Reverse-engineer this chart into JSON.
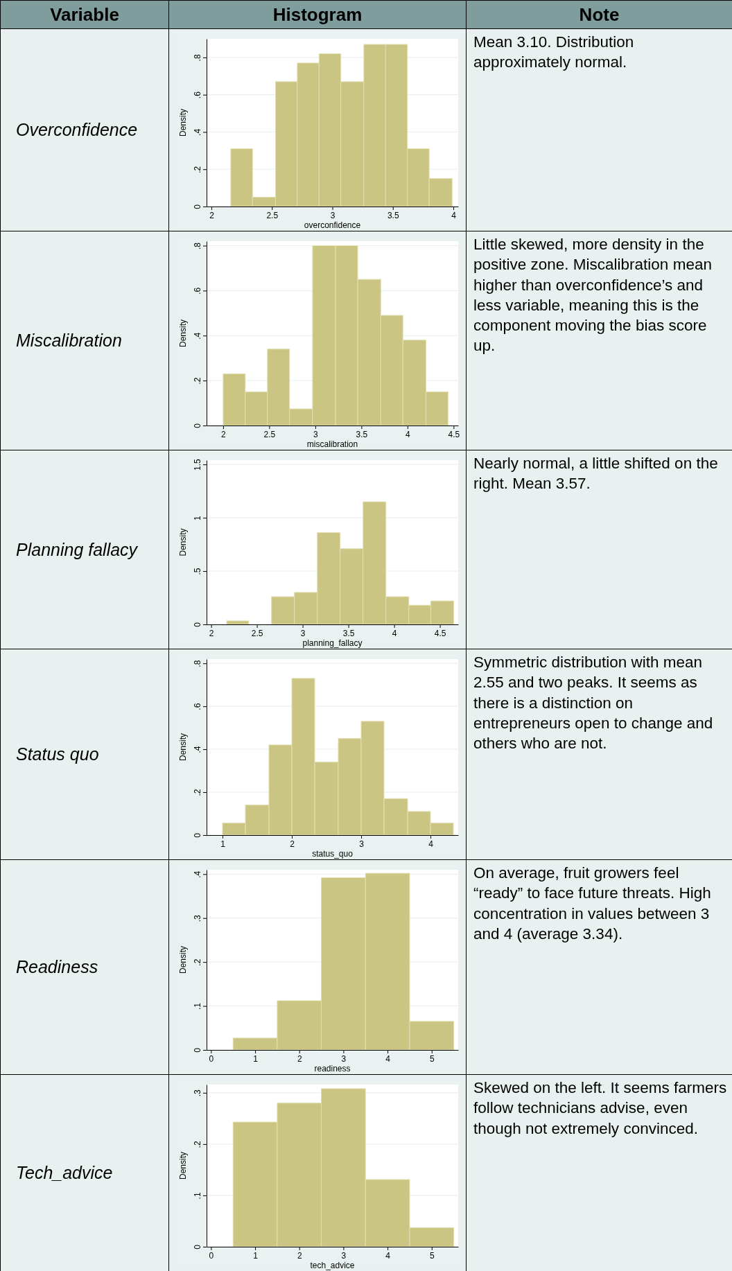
{
  "chart_data": [
    {
      "type": "other",
      "annotations": [
        "Variable",
        "Histogram",
        "Note"
      ]
    },
    {
      "type": "histogram",
      "title": "Overconfidence",
      "xlabel": "overconfidence",
      "ylabel": "Density",
      "color": "#cbc584",
      "grid": "y",
      "bins": [
        2.16,
        2.34,
        2.53,
        2.71,
        2.89,
        3.07,
        3.26,
        3.44,
        3.62,
        3.8,
        3.99
      ],
      "values": [
        0.31,
        0.05,
        0.67,
        0.77,
        0.82,
        0.67,
        0.87,
        0.87,
        0.31,
        0.15
      ],
      "xlim": [
        1.96,
        4.04
      ],
      "xticks": [
        2,
        2.5,
        3,
        3.5,
        4
      ],
      "ylim": [
        0,
        0.9
      ],
      "yticks": [
        0,
        {
          "value": 0.2,
          "label": ".2"
        },
        {
          "value": 0.4,
          "label": ".4"
        },
        {
          "value": 0.6,
          "label": ".6"
        },
        {
          "value": 0.8,
          "label": ".8"
        }
      ],
      "annotations": [
        "Mean 3.10. Distribution approximately normal."
      ]
    },
    {
      "type": "histogram",
      "title": "Miscalibration",
      "xlabel": "miscalibration",
      "ylabel": "Density",
      "color": "#cbc584",
      "grid": "y",
      "bins": [
        2,
        2.24,
        2.48,
        2.72,
        2.97,
        3.22,
        3.46,
        3.71,
        3.95,
        4.2,
        4.44
      ],
      "values": [
        0.23,
        0.15,
        0.34,
        0.074,
        0.8,
        0.8,
        0.65,
        0.49,
        0.38,
        0.15
      ],
      "xlim": [
        1.82,
        4.55
      ],
      "xticks": [
        2,
        2.5,
        3,
        3.5,
        4,
        4.5
      ],
      "ylim": [
        0,
        0.82
      ],
      "yticks": [
        0,
        {
          "value": 0.2,
          "label": ".2"
        },
        {
          "value": 0.4,
          "label": ".4"
        },
        {
          "value": 0.6,
          "label": ".6"
        },
        {
          "value": 0.8,
          "label": ".8"
        }
      ],
      "annotations": [
        "Little skewed, more density in the positive zone. Miscalibration mean higher than overconfidence’s and less variable, meaning this is the component moving the bias score up."
      ]
    },
    {
      "type": "histogram",
      "title": "Planning fallacy",
      "xlabel": "planning_fallacy",
      "ylabel": "Density",
      "color": "#cbc584",
      "grid": "y",
      "bins": [
        2.17,
        2.41,
        2.66,
        2.91,
        3.16,
        3.41,
        3.66,
        3.91,
        4.16,
        4.4,
        4.65
      ],
      "values": [
        0.033,
        0,
        0.26,
        0.3,
        0.86,
        0.71,
        1.15,
        0.26,
        0.18,
        0.22
      ],
      "xlim": [
        1.95,
        4.7
      ],
      "xticks": [
        2,
        2.5,
        3,
        3.5,
        4,
        4.5
      ],
      "ylim": [
        0,
        1.54
      ],
      "yticks": [
        0,
        {
          "value": 0.5,
          "label": ".5"
        },
        1,
        1.5
      ],
      "annotations": [
        "Nearly normal, a little shifted on the right. Mean 3.57."
      ]
    },
    {
      "type": "histogram",
      "title": "Status quo",
      "xlabel": "status_quo",
      "ylabel": "Density",
      "color": "#cbc584",
      "grid": "y",
      "bins": [
        1,
        1.33,
        1.67,
        2,
        2.33,
        2.67,
        3,
        3.33,
        3.67,
        4,
        4.33
      ],
      "values": [
        0.056,
        0.14,
        0.42,
        0.73,
        0.34,
        0.45,
        0.53,
        0.17,
        0.11,
        0.056
      ],
      "xlim": [
        0.77,
        4.4
      ],
      "xticks": [
        1,
        2,
        3,
        4
      ],
      "ylim": [
        0,
        0.82
      ],
      "yticks": [
        0,
        {
          "value": 0.2,
          "label": ".2"
        },
        {
          "value": 0.4,
          "label": ".4"
        },
        {
          "value": 0.6,
          "label": ".6"
        },
        {
          "value": 0.8,
          "label": ".8"
        }
      ],
      "annotations": [
        "Symmetric distribution with mean 2.55 and two peaks. It seems as there is a distinction on entrepreneurs open to change and others who are not."
      ]
    },
    {
      "type": "histogram",
      "title": "Readiness",
      "xlabel": "readiness",
      "ylabel": "Density",
      "color": "#cbc584",
      "grid": "y",
      "bins": [
        0.5,
        1.5,
        2.5,
        3.5,
        4.5,
        5.5
      ],
      "values": [
        0.027,
        0.112,
        0.392,
        0.402,
        0.065
      ],
      "xlim": [
        -0.1,
        5.6
      ],
      "xticks": [
        0,
        1,
        2,
        3,
        4,
        5
      ],
      "ylim": [
        0,
        0.41
      ],
      "yticks": [
        0,
        {
          "value": 0.1,
          "label": ".1"
        },
        {
          "value": 0.2,
          "label": ".2"
        },
        {
          "value": 0.3,
          "label": ".3"
        },
        {
          "value": 0.4,
          "label": ".4"
        }
      ],
      "annotations": [
        "On average, fruit growers feel “ready” to face future threats. High concentration in values between 3 and 4 (average 3.34)."
      ]
    },
    {
      "type": "histogram",
      "title": "Tech_advice",
      "xlabel": "tech_advice",
      "ylabel": "Density",
      "color": "#cbc584",
      "grid": "y",
      "bins": [
        0.5,
        1.5,
        2.5,
        3.5,
        4.5,
        5.5
      ],
      "values": [
        0.243,
        0.28,
        0.308,
        0.131,
        0.037
      ],
      "xlim": [
        -0.1,
        5.6
      ],
      "xticks": [
        0,
        1,
        2,
        3,
        4,
        5
      ],
      "ylim": [
        0,
        0.316
      ],
      "yticks": [
        0,
        {
          "value": 0.1,
          "label": ".1"
        },
        {
          "value": 0.2,
          "label": ".2"
        },
        {
          "value": 0.3,
          "label": ".3"
        }
      ],
      "annotations": [
        "Skewed on the left. It seems farmers follow technicians advise, even though not extremely convinced."
      ]
    }
  ]
}
